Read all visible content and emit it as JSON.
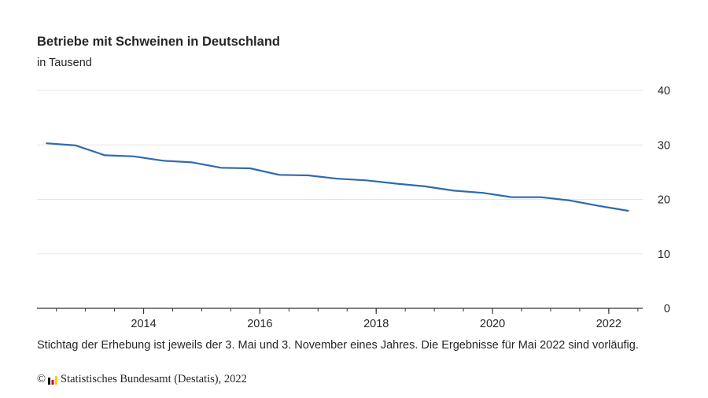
{
  "chart_data": {
    "type": "line",
    "title": "Betriebe mit Schweinen in Deutschland",
    "subtitle": "in Tausend",
    "x_tick_labels": [
      "2014",
      "2016",
      "2018",
      "2020",
      "2022"
    ],
    "y_tick_labels": [
      "0",
      "10",
      "20",
      "30",
      "40"
    ],
    "ylim": [
      0,
      40
    ],
    "xlim": [
      "2012-03",
      "2022-08"
    ],
    "grid": true,
    "y_axis_side": "right",
    "series": [
      {
        "color": "#2d6ab0",
        "points": [
          {
            "date": "2012-05",
            "value": 30.3
          },
          {
            "date": "2012-11",
            "value": 29.9
          },
          {
            "date": "2013-05",
            "value": 28.1
          },
          {
            "date": "2013-11",
            "value": 27.9
          },
          {
            "date": "2014-05",
            "value": 27.1
          },
          {
            "date": "2014-11",
            "value": 26.8
          },
          {
            "date": "2015-05",
            "value": 25.8
          },
          {
            "date": "2015-11",
            "value": 25.7
          },
          {
            "date": "2016-05",
            "value": 24.5
          },
          {
            "date": "2016-11",
            "value": 24.4
          },
          {
            "date": "2017-05",
            "value": 23.8
          },
          {
            "date": "2017-11",
            "value": 23.5
          },
          {
            "date": "2018-05",
            "value": 22.9
          },
          {
            "date": "2018-11",
            "value": 22.4
          },
          {
            "date": "2019-05",
            "value": 21.6
          },
          {
            "date": "2019-11",
            "value": 21.2
          },
          {
            "date": "2020-05",
            "value": 20.4
          },
          {
            "date": "2020-11",
            "value": 20.4
          },
          {
            "date": "2021-05",
            "value": 19.8
          },
          {
            "date": "2021-11",
            "value": 18.8
          },
          {
            "date": "2022-05",
            "value": 17.9
          }
        ]
      }
    ]
  },
  "footnote": "Stichtag der Erhebung ist jeweils der 3. Mai und 3. November eines Jahres. Die Ergebnisse für Mai 2022 sind vorläufig.",
  "source": {
    "copyright_symbol": "©",
    "text": "Statistisches Bundesamt (Destatis), 2022",
    "logo_icon": "destatis-logo-icon",
    "logo_colors": [
      "#000000",
      "#dd0000",
      "#ffcc00"
    ]
  },
  "colors": {
    "gridline": "#e6e6e6",
    "axis": "#333333",
    "text": "#262626"
  }
}
